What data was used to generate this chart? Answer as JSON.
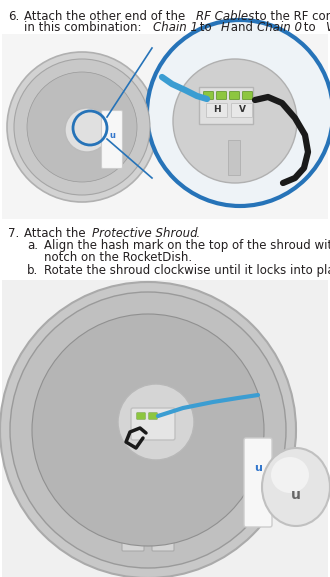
{
  "bg_color": "#ffffff",
  "text_color": "#231f20",
  "step6_num": "6.",
  "step7_num": "7.",
  "step7a_num": "a.",
  "step7b_num": "b.",
  "blue_circle_color": "#2673b8",
  "blue_line_color": "#3b9dd2",
  "green_color": "#8dc63f",
  "font_size_body": 8.5,
  "img1_bg": "#f5f5f5",
  "img2_bg": "#f0f0f0"
}
